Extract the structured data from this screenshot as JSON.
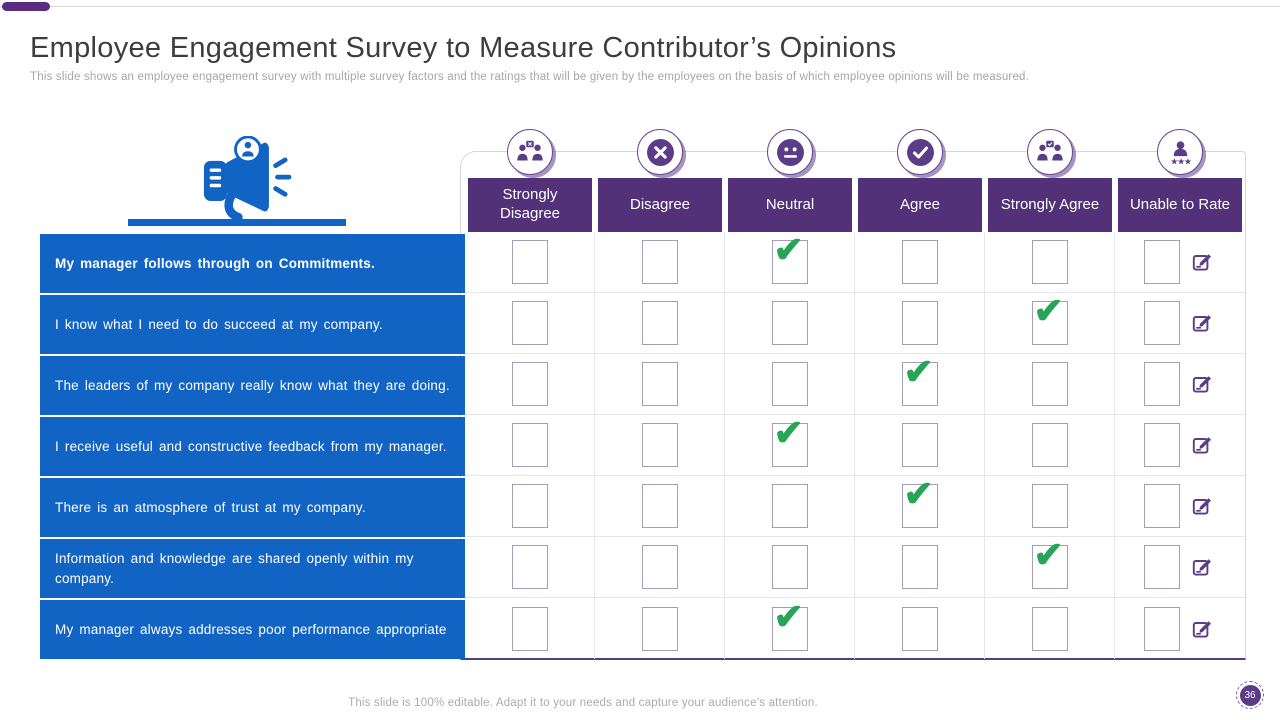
{
  "slide": {
    "title": "Employee Engagement Survey to Measure Contributor’s Opinions",
    "subtitle": "This slide shows an employee engagement survey with multiple survey factors and the ratings that will be given by the employees on the basis of which employee opinions will be measured.",
    "footer": "This slide is 100% editable. Adapt it to your needs and capture your audience’s attention.",
    "page_number": "36"
  },
  "colors": {
    "accent_blue": "#1264c4",
    "header_purple": "#523178",
    "icon_purple": "#5b3c87",
    "check_green": "#28a457"
  },
  "survey": {
    "columns": [
      {
        "label": "Strongly Disagree",
        "icon": "people-conflict-icon"
      },
      {
        "label": "Disagree",
        "icon": "cross-circle-icon"
      },
      {
        "label": "Neutral",
        "icon": "neutral-face-icon"
      },
      {
        "label": "Agree",
        "icon": "check-circle-icon"
      },
      {
        "label": "Strongly Agree",
        "icon": "people-agreement-icon"
      },
      {
        "label": "Unable to Rate",
        "icon": "person-rating-icon"
      }
    ],
    "checkmark_glyph": "✔",
    "rows": [
      {
        "question": "My manager follows through on Commitments.",
        "bold": true,
        "selected": "Neutral"
      },
      {
        "question": "I know what I need to do succeed at my company.",
        "bold": false,
        "selected": "Strongly Agree"
      },
      {
        "question": "The leaders of my company really know what they are doing.",
        "bold": false,
        "selected": "Agree"
      },
      {
        "question": "I receive useful and constructive feedback from my manager.",
        "bold": false,
        "selected": "Neutral"
      },
      {
        "question": "There is an atmosphere of trust at my company.",
        "bold": false,
        "selected": "Agree"
      },
      {
        "question": "Information and knowledge are shared openly within my company.",
        "bold": false,
        "selected": "Strongly Agree"
      },
      {
        "question": "My manager always addresses poor performance appropriate",
        "bold": false,
        "selected": "Neutral"
      }
    ]
  }
}
